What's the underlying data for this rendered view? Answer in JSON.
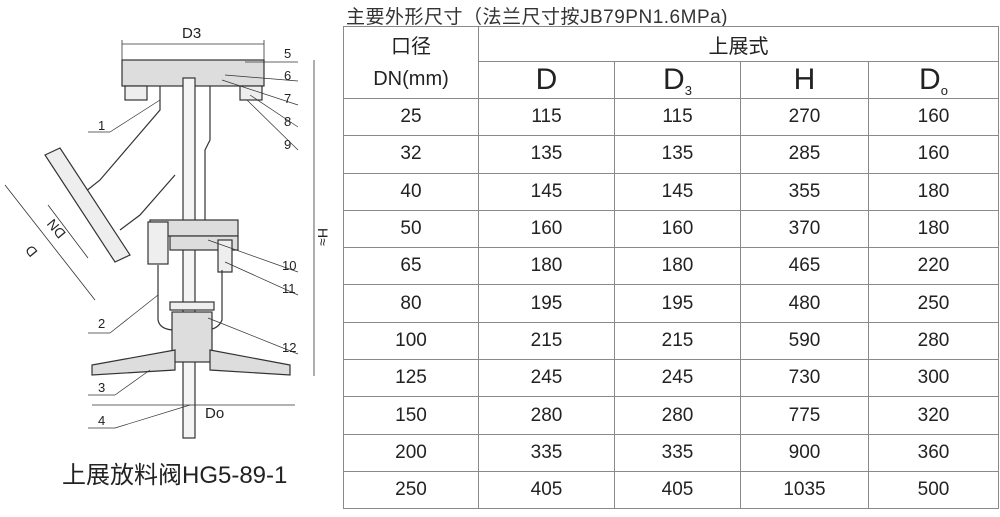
{
  "drawing": {
    "labels": {
      "d3": "D3",
      "dn": "DN",
      "d": "D",
      "h": "H≈",
      "do": "Do"
    },
    "part_numbers": [
      "1",
      "2",
      "3",
      "4",
      "5",
      "6",
      "7",
      "8",
      "9",
      "10",
      "11",
      "12"
    ],
    "caption": "上展放料阀HG5-89-1"
  },
  "table": {
    "title": "主要外形尺寸（法兰尺寸按JB79PN1.6MPa)",
    "header": {
      "dn_line1": "口径",
      "dn_line2": "DN(mm)",
      "group": "上展式",
      "cols": [
        {
          "main": "D",
          "sub": ""
        },
        {
          "main": "D",
          "sub": "3"
        },
        {
          "main": "H",
          "sub": ""
        },
        {
          "main": "D",
          "sub": "o"
        }
      ]
    },
    "rows": [
      [
        "25",
        "115",
        "115",
        "270",
        "160"
      ],
      [
        "32",
        "135",
        "135",
        "285",
        "160"
      ],
      [
        "40",
        "145",
        "145",
        "355",
        "180"
      ],
      [
        "50",
        "160",
        "160",
        "370",
        "180"
      ],
      [
        "65",
        "180",
        "180",
        "465",
        "220"
      ],
      [
        "80",
        "195",
        "195",
        "480",
        "250"
      ],
      [
        "100",
        "215",
        "215",
        "590",
        "280"
      ],
      [
        "125",
        "245",
        "245",
        "730",
        "300"
      ],
      [
        "150",
        "280",
        "280",
        "775",
        "320"
      ],
      [
        "200",
        "335",
        "335",
        "900",
        "360"
      ],
      [
        "250",
        "405",
        "405",
        "1035",
        "500"
      ]
    ]
  }
}
